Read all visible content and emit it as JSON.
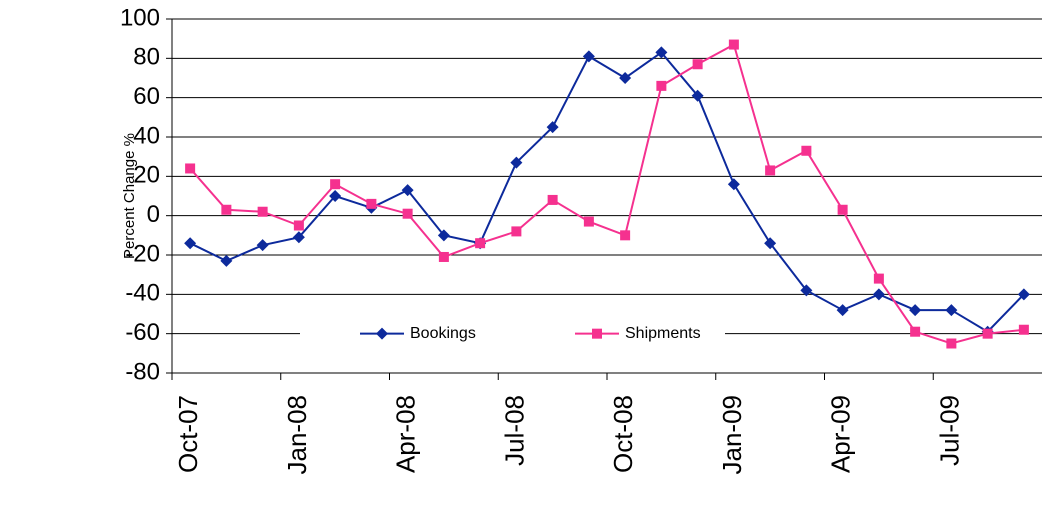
{
  "chart_data": {
    "type": "line",
    "y_label": "Percent Change %",
    "categories": [
      "Oct-07",
      null,
      null,
      "Jan-08",
      null,
      null,
      "Apr-08",
      null,
      null,
      "Jul-08",
      null,
      null,
      "Oct-08",
      null,
      null,
      "Jan-09",
      null,
      null,
      "Apr-09",
      null,
      null,
      "Jul-09",
      null,
      null
    ],
    "series": [
      {
        "name": "Bookings",
        "color": "#0d2a9c",
        "marker": "diamond",
        "values": [
          -14,
          -23,
          -15,
          -11,
          10,
          4,
          13,
          -10,
          -14,
          27,
          45,
          81,
          70,
          83,
          61,
          16,
          -14,
          -38,
          -48,
          -40,
          -48,
          -48,
          -59,
          -40
        ]
      },
      {
        "name": "Shipments",
        "color": "#f5318f",
        "marker": "square",
        "values": [
          24,
          3,
          2,
          -5,
          16,
          6,
          1,
          -21,
          -14,
          -8,
          8,
          -3,
          -10,
          66,
          77,
          87,
          23,
          33,
          3,
          -32,
          -59,
          -65,
          -60,
          -58
        ]
      }
    ],
    "ylim": [
      -80,
      100
    ],
    "yticks": [
      -80,
      -60,
      -40,
      -20,
      0,
      20,
      40,
      60,
      80,
      100
    ],
    "grid": true,
    "legend": "bottom-center"
  }
}
